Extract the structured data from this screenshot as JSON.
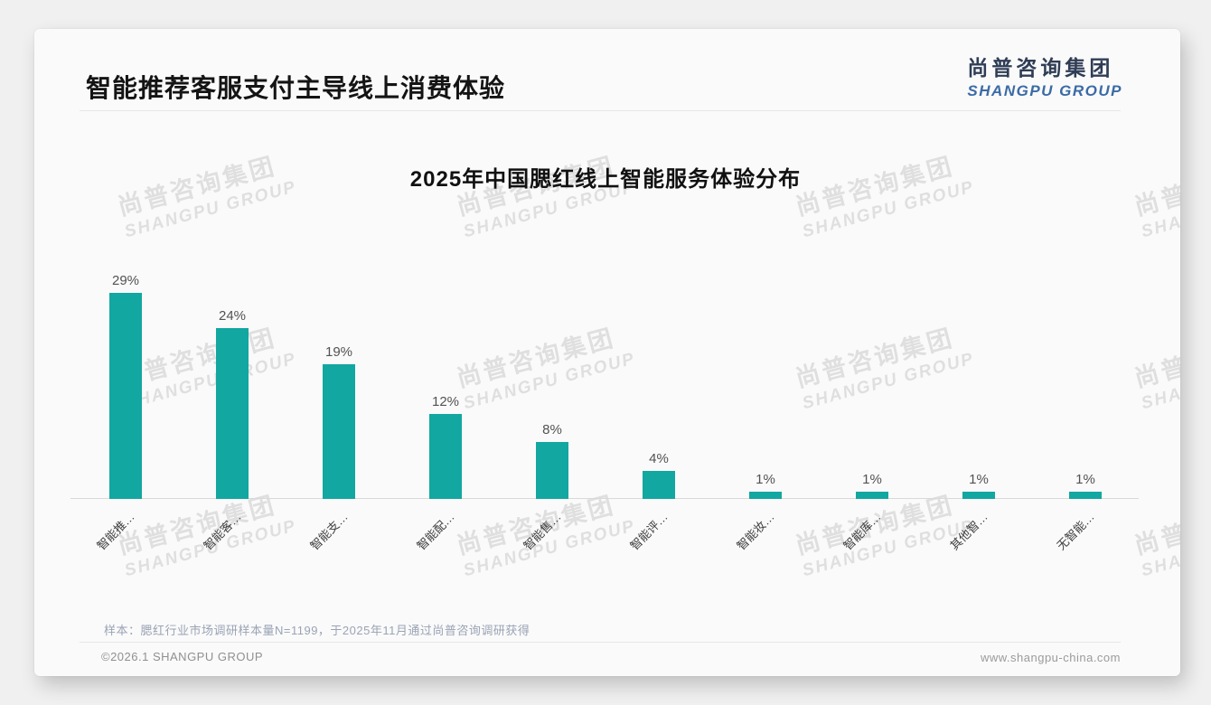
{
  "header": {
    "title": "智能推荐客服支付主导线上消费体验"
  },
  "logo": {
    "cn": "尚普咨询集团",
    "en": "SHANGPU GROUP"
  },
  "watermark": {
    "cn": "尚普咨询集团",
    "en": "SHANGPU GROUP"
  },
  "chart_data": {
    "type": "bar",
    "title": "2025年中国腮红线上智能服务体验分布",
    "categories": [
      "智能推…",
      "智能客…",
      "智能支…",
      "智能配…",
      "智能售…",
      "智能评…",
      "智能妆…",
      "智能库…",
      "其他智…",
      "无智能…"
    ],
    "values": [
      29,
      24,
      19,
      12,
      8,
      4,
      1,
      1,
      1,
      1
    ],
    "value_labels": [
      "29%",
      "24%",
      "19%%",
      "12%",
      "8%",
      "4%",
      "1%",
      "1%",
      "1%",
      "1%"
    ],
    "bar_color": "#12a7a0",
    "xlabel": "",
    "ylabel": "",
    "ylim": [
      0,
      30
    ],
    "grid": false,
    "legend": null,
    "x_label_rotation_deg": 45
  },
  "note": "样本：腮红行业市场调研样本量N=1199，于2025年11月通过尚普咨询调研获得",
  "footer": {
    "left": "©2026.1 SHANGPU GROUP",
    "right": "www.shangpu-china.com"
  }
}
